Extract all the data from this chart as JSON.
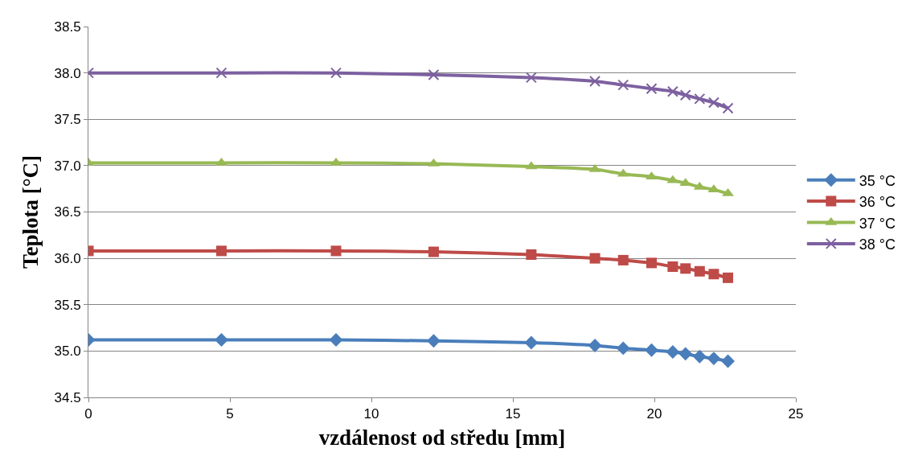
{
  "chart_data": {
    "type": "line",
    "xlabel": "vzdálenost od středu [mm]",
    "ylabel": "Teplota [°C]",
    "x": [
      0,
      4.7,
      8.75,
      12.2,
      15.65,
      17.9,
      18.9,
      19.9,
      20.65,
      21.1,
      21.6,
      22.1,
      22.6
    ],
    "series": [
      {
        "name": "35 °C",
        "color": "#4a7ebb",
        "marker": "diamond",
        "values": [
          35.12,
          35.12,
          35.12,
          35.11,
          35.09,
          35.06,
          35.03,
          35.01,
          34.99,
          34.97,
          34.94,
          34.92,
          34.89
        ]
      },
      {
        "name": "36 °C",
        "color": "#be4b48",
        "marker": "square",
        "values": [
          36.08,
          36.08,
          36.08,
          36.07,
          36.04,
          36.0,
          35.98,
          35.95,
          35.91,
          35.89,
          35.86,
          35.83,
          35.79
        ]
      },
      {
        "name": "37 °C",
        "color": "#98b954",
        "marker": "triangle",
        "values": [
          37.03,
          37.03,
          37.03,
          37.02,
          36.99,
          36.96,
          36.91,
          36.88,
          36.84,
          36.81,
          36.77,
          36.74,
          36.7
        ]
      },
      {
        "name": "38 °C",
        "color": "#7d60a0",
        "marker": "cross",
        "values": [
          38.0,
          38.0,
          38.0,
          37.98,
          37.95,
          37.91,
          37.87,
          37.83,
          37.8,
          37.76,
          37.72,
          37.68,
          37.62
        ]
      }
    ],
    "xlim": [
      0,
      25
    ],
    "xticks": [
      0,
      5,
      10,
      15,
      20,
      25
    ],
    "ylim": [
      34.5,
      38.5
    ],
    "yticks": [
      {
        "value": 34.5,
        "label": "34.5"
      },
      {
        "value": 35,
        "label": "35.0"
      },
      {
        "value": 35.5,
        "label": "35.5"
      },
      {
        "value": 36,
        "label": "36.0"
      },
      {
        "value": 36.5,
        "label": "36.5"
      },
      {
        "value": 37,
        "label": "37.0"
      },
      {
        "value": 37.5,
        "label": "37.5"
      },
      {
        "value": 38,
        "label": "38.0"
      },
      {
        "value": 38.5,
        "label": "38.5"
      }
    ],
    "grid": "y",
    "legend": "right",
    "line_style": "solid"
  }
}
